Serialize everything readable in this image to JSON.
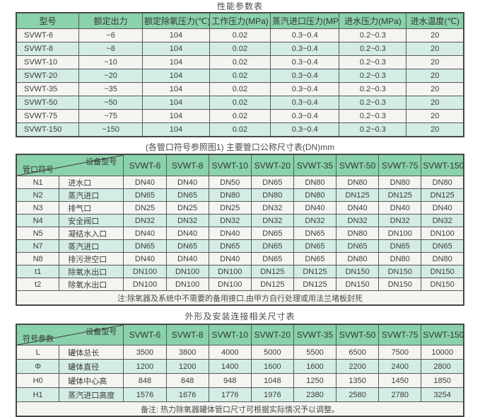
{
  "colors": {
    "header_green": "#89d2ab",
    "row_light": "#f4f4f1",
    "row_teal": "#d4ece6",
    "border": "#474747",
    "text": "#3c3c3c"
  },
  "table1": {
    "title": "性能参数表",
    "headers": [
      "型号",
      "额定出力",
      "额定除氧压力(℃)",
      "工作压力(MPa)",
      "蒸汽进口压力(MPa)",
      "进水压力(MPa)",
      "进水温度(℃)"
    ],
    "rows": [
      [
        "SVWT-6",
        "~6",
        "104",
        "0.02",
        "0.3~0.4",
        "0.2~0.3",
        "20"
      ],
      [
        "SVWT-8",
        "~8",
        "104",
        "0.02",
        "0.3~0.4",
        "0.2~0.3",
        "20"
      ],
      [
        "SVWT-10",
        "~10",
        "104",
        "0.02",
        "0.3~0.4",
        "0.2~0.3",
        "20"
      ],
      [
        "SVWT-20",
        "~20",
        "104",
        "0.02",
        "0.3~0.4",
        "0.2~0.3",
        "20"
      ],
      [
        "SVWT-35",
        "~35",
        "104",
        "0.02",
        "0.3~0.4",
        "0.2~0.3",
        "20"
      ],
      [
        "SVWT-50",
        "~50",
        "104",
        "0.02",
        "0.3~0.4",
        "0.2~0.3",
        "20"
      ],
      [
        "SVWT-75",
        "~75",
        "104",
        "0.02",
        "0.3~0.4",
        "0.2~0.3",
        "20"
      ],
      [
        "SVWT-150",
        "~150",
        "104",
        "0.02",
        "0.3~0.4",
        "0.2~0.3",
        "20"
      ]
    ]
  },
  "table2": {
    "title": "(各管口符号参照图1) 主要管口公称尺寸表(DN)mm",
    "corner": {
      "top": "设备型号",
      "bottom": "管口符号"
    },
    "models": [
      "SVWT-6",
      "SVWT-8",
      "SVWT-10",
      "SVWT-20",
      "SVWT-35",
      "SVWT-50",
      "SVWT-75",
      "SVWT-150"
    ],
    "rows": [
      {
        "code": "N1",
        "name": "进水口",
        "values": [
          "DN40",
          "DN40",
          "DN50",
          "DN65",
          "DN80",
          "DN80",
          "DN80",
          "DN80"
        ]
      },
      {
        "code": "N2",
        "name": "蒸汽进口",
        "values": [
          "DN65",
          "DN65",
          "DN80",
          "DN80",
          "DN80",
          "DN125",
          "DN125",
          "DN125"
        ]
      },
      {
        "code": "N3",
        "name": "排气口",
        "values": [
          "DN25",
          "DN25",
          "DN25",
          "DN32",
          "DN40",
          "DN40",
          "DN40",
          "DN40"
        ]
      },
      {
        "code": "N4",
        "name": "安全阀口",
        "values": [
          "DN32",
          "DN32",
          "DN32",
          "DN32",
          "DN32",
          "DN32",
          "DN32",
          "DN32"
        ]
      },
      {
        "code": "N5",
        "name": "凝结水入口",
        "values": [
          "DN40",
          "DN40",
          "DN40",
          "DN65",
          "DN65",
          "DN80",
          "DN100",
          "DN100"
        ]
      },
      {
        "code": "N7",
        "name": "蒸汽进口",
        "values": [
          "DN65",
          "DN65",
          "DN65",
          "DN65",
          "DN65",
          "DN65",
          "DN65",
          "DN65"
        ]
      },
      {
        "code": "N8",
        "name": "排污泄空口",
        "values": [
          "DN40",
          "DN40",
          "DN40",
          "DN65",
          "DN65",
          "DN80",
          "DN80",
          "DN80"
        ]
      },
      {
        "code": "t1",
        "name": "除氧水出口",
        "values": [
          "DN100",
          "DN100",
          "DN100",
          "DN125",
          "DN125",
          "DN150",
          "DN150",
          "DN150"
        ]
      },
      {
        "code": "t2",
        "name": "除氧水出口",
        "values": [
          "DN100",
          "DN100",
          "DN100",
          "DN125",
          "DN125",
          "DN150",
          "DN150",
          "DN150"
        ]
      }
    ],
    "note": "注:除氧器及系统中不需要的备用接口,由甲方自行处理或用法兰堵板封死"
  },
  "table3": {
    "title": "外形及安装连接相关尺寸表",
    "corner": {
      "top": "设备型号",
      "bottom": "符号参数"
    },
    "models": [
      "SVWT-6",
      "SVWT-8",
      "SVWT-10",
      "SVWT-20",
      "SVWT-35",
      "SVWT-50",
      "SVWT-75",
      "SVWT-150"
    ],
    "rows": [
      {
        "code": "L",
        "name": "罐体总长",
        "values": [
          "3500",
          "3800",
          "4000",
          "5000",
          "5500",
          "6500",
          "7500",
          "10000"
        ]
      },
      {
        "code": "Φ",
        "name": "罐体直径",
        "values": [
          "1200",
          "1200",
          "1400",
          "1600",
          "1600",
          "2200",
          "2400",
          "2800"
        ]
      },
      {
        "code": "H0",
        "name": "罐体中心高",
        "values": [
          "848",
          "848",
          "948",
          "1048",
          "1250",
          "1350",
          "1450",
          "1850"
        ]
      },
      {
        "code": "H1",
        "name": "蒸汽进口高度",
        "values": [
          "1576",
          "1676",
          "1776",
          "1976",
          "2380",
          "2580",
          "2780",
          "3254"
        ]
      }
    ],
    "note": "备注: 热力除氧器罐体管口尺寸可根据实际情况予以调整。"
  }
}
